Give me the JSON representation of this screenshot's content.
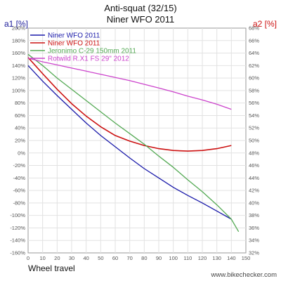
{
  "chart_data": {
    "type": "line",
    "title": "Anti-squat (32/15)",
    "subtitle": "Niner WFO 2011",
    "xlabel": "Wheel travel",
    "ylabel_left": "a1 [%]",
    "ylabel_right": "a2 [%]",
    "xlim": [
      0,
      150
    ],
    "ylim_left": [
      -160,
      200
    ],
    "ylim_right": [
      32,
      68
    ],
    "xticks": [
      "0",
      "10",
      "20",
      "30",
      "40",
      "50",
      "60",
      "70",
      "80",
      "90",
      "100",
      "110",
      "120",
      "130",
      "140",
      "150"
    ],
    "yticks_left": [
      "200%",
      "180%",
      "160%",
      "140%",
      "120%",
      "100%",
      "80%",
      "60%",
      "40%",
      "20%",
      "0%",
      "-20%",
      "-40%",
      "-60%",
      "-80%",
      "-100%",
      "-120%",
      "-140%",
      "-160%"
    ],
    "yticks_right": [
      "68%",
      "66%",
      "64%",
      "62%",
      "60%",
      "58%",
      "56%",
      "54%",
      "52%",
      "50%",
      "48%",
      "46%",
      "44%",
      "42%",
      "40%",
      "38%",
      "36%",
      "34%",
      "32%"
    ],
    "grid": true,
    "legend_position": "top-left",
    "series": [
      {
        "name": "Niner WFO 2011",
        "axis": "left",
        "color": "#1a1aaa",
        "x": [
          0,
          10,
          20,
          30,
          40,
          50,
          60,
          70,
          80,
          90,
          100,
          110,
          120,
          130,
          140
        ],
        "y": [
          140,
          115,
          92,
          70,
          48,
          28,
          10,
          -8,
          -25,
          -40,
          -55,
          -68,
          -80,
          -93,
          -106
        ]
      },
      {
        "name": "Niner WFO 2011",
        "axis": "left",
        "color": "#cc1111",
        "x": [
          0,
          10,
          20,
          30,
          40,
          50,
          60,
          70,
          80,
          90,
          100,
          110,
          120,
          130,
          140
        ],
        "y": [
          153,
          127,
          102,
          79,
          59,
          42,
          28,
          19,
          12,
          7,
          4,
          3,
          4,
          7,
          12
        ]
      },
      {
        "name": "Jeronimo C-29 150mm 2011",
        "axis": "left",
        "color": "#55aa55",
        "x": [
          0,
          10,
          20,
          30,
          40,
          50,
          60,
          70,
          80,
          90,
          100,
          110,
          120,
          130,
          140,
          145
        ],
        "y": [
          158,
          140,
          120,
          102,
          84,
          66,
          48,
          31,
          14,
          -5,
          -23,
          -43,
          -62,
          -83,
          -106,
          -126
        ]
      },
      {
        "name": "Rotwild R.X1 FS 29\" 2012",
        "axis": "left",
        "color": "#cc44cc",
        "x": [
          0,
          10,
          20,
          30,
          40,
          50,
          60,
          70,
          80,
          90,
          100,
          110,
          120,
          130,
          140
        ],
        "y": [
          152,
          146,
          141,
          136,
          131,
          126,
          121,
          116,
          110,
          104,
          98,
          91,
          85,
          78,
          70
        ]
      }
    ]
  },
  "footer": {
    "site": "www.bikechecker.com"
  }
}
